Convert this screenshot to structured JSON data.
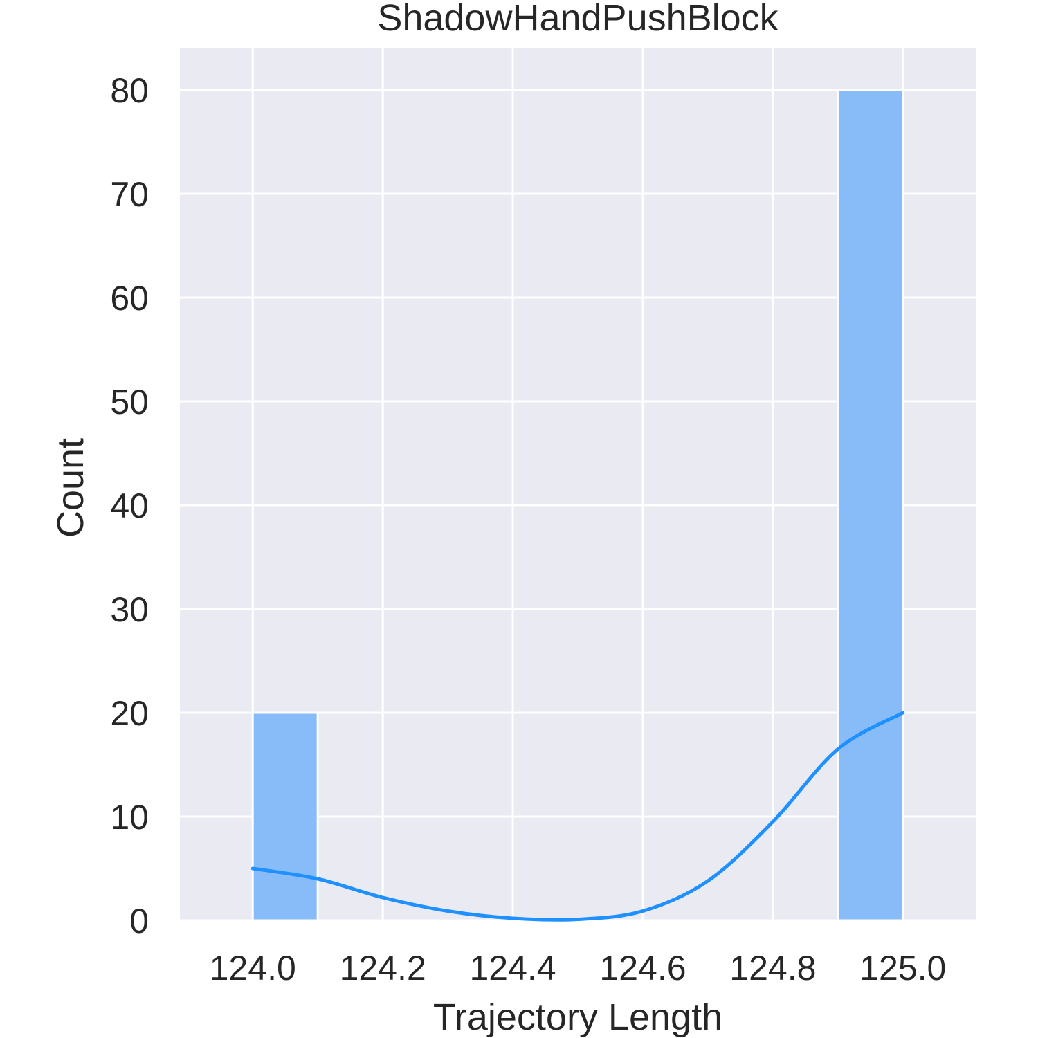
{
  "chart_data": {
    "type": "bar",
    "title": "ShadowHandPushBlock",
    "xlabel": "Trajectory Length",
    "ylabel": "Count",
    "xlim": [
      123.888,
      125.112
    ],
    "ylim": [
      0,
      84
    ],
    "x_ticks": [
      "124.0",
      "124.2",
      "124.4",
      "124.6",
      "124.8",
      "125.0"
    ],
    "x_tick_values": [
      124.0,
      124.2,
      124.4,
      124.6,
      124.8,
      125.0
    ],
    "y_ticks": [
      "0",
      "10",
      "20",
      "30",
      "40",
      "50",
      "60",
      "70",
      "80"
    ],
    "y_tick_values": [
      0,
      10,
      20,
      30,
      40,
      50,
      60,
      70,
      80
    ],
    "bin_edges": [
      124.0,
      124.1,
      124.2,
      124.3,
      124.4,
      124.5,
      124.6,
      124.7,
      124.8,
      124.9,
      125.0
    ],
    "values": [
      20,
      0,
      0,
      0,
      0,
      0,
      0,
      0,
      0,
      80
    ],
    "kde": {
      "x": [
        124.0,
        124.1,
        124.2,
        124.3,
        124.4,
        124.5,
        124.6,
        124.7,
        124.8,
        124.9,
        125.0
      ],
      "y": [
        5.0,
        4.0,
        2.2,
        0.9,
        0.2,
        0.1,
        0.9,
        3.8,
        9.5,
        16.5,
        20.0
      ]
    },
    "grid": true,
    "background": "#eaeaf2",
    "bar_color": "#87bcf8",
    "line_color": "#1e90ff"
  }
}
